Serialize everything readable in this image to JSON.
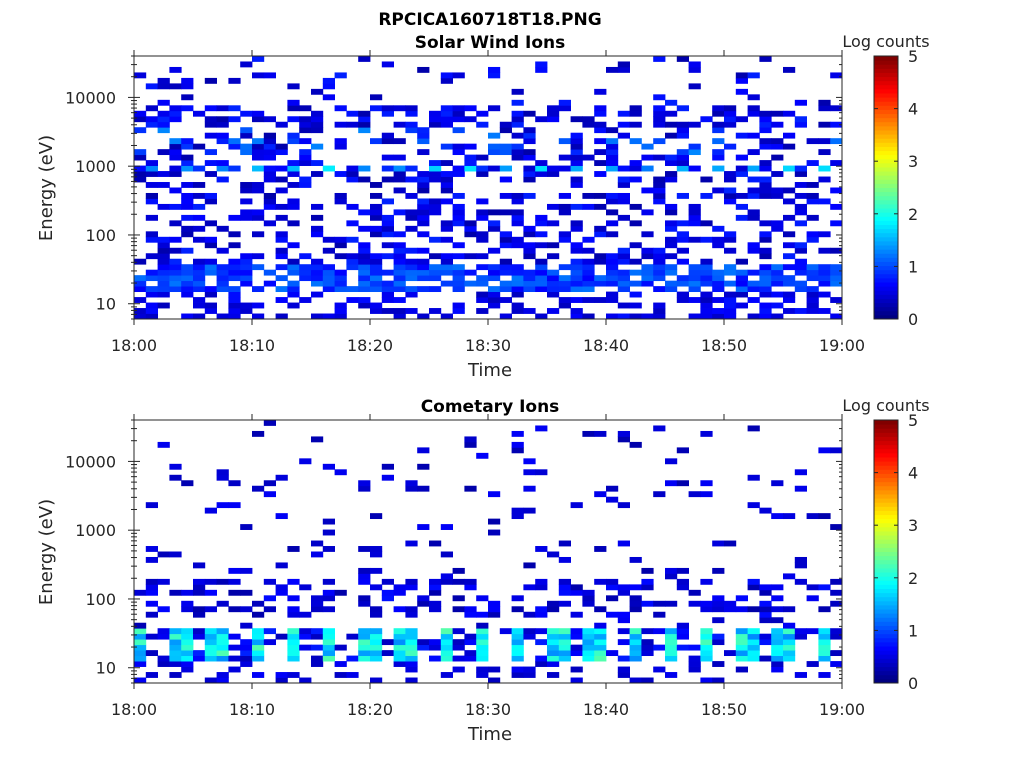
{
  "page_title": "RPCICA160718T18.PNG",
  "chart_data": [
    {
      "type": "heatmap",
      "title": "Solar Wind Ions",
      "xlabel": "Time",
      "ylabel": "Energy (eV)",
      "x_ticks": [
        "18:00",
        "18:10",
        "18:20",
        "18:30",
        "18:40",
        "18:50",
        "19:00"
      ],
      "x_range": [
        "18:00",
        "19:00"
      ],
      "y_scale": "log",
      "y_ticks": [
        10,
        100,
        1000,
        10000
      ],
      "y_tick_labels": [
        "10",
        "100",
        "1000",
        "10000"
      ],
      "ylim": [
        6,
        40000
      ],
      "colorbar": {
        "label": "Log counts",
        "range": [
          0,
          5
        ],
        "ticks": [
          "0",
          "1",
          "2",
          "3",
          "4",
          "5"
        ],
        "colormap": "jet"
      },
      "features": {
        "rows": 48,
        "cols": 60,
        "seed": 11,
        "background_density": 0.4,
        "background_density_high": 0.12,
        "low_energy_band": [
          15,
          35
        ],
        "low_energy_log_counts": [
          0.6,
          1.2
        ],
        "band_1keV": 1000,
        "band_1keV_log_counts": [
          1.2,
          1.8
        ],
        "bottom_sparse_band": [
          6,
          15
        ]
      }
    },
    {
      "type": "heatmap",
      "title": "Cometary Ions",
      "xlabel": "Time",
      "ylabel": "Energy (eV)",
      "x_ticks": [
        "18:00",
        "18:10",
        "18:20",
        "18:30",
        "18:40",
        "18:50",
        "19:00"
      ],
      "x_range": [
        "18:00",
        "19:00"
      ],
      "y_scale": "log",
      "y_ticks": [
        10,
        100,
        1000,
        10000
      ],
      "y_tick_labels": [
        "10",
        "100",
        "1000",
        "10000"
      ],
      "ylim": [
        6,
        40000
      ],
      "colorbar": {
        "label": "Log counts",
        "range": [
          0,
          5
        ],
        "ticks": [
          "0",
          "1",
          "2",
          "3",
          "4",
          "5"
        ],
        "colormap": "jet"
      },
      "features": {
        "rows": 48,
        "cols": 60,
        "seed": 29,
        "background_density": 0.1,
        "background_density_high": 0.05,
        "mid_band": [
          50,
          200
        ],
        "mid_density": 0.35,
        "low_energy_band": [
          12,
          35
        ],
        "low_energy_log_counts": [
          1.3,
          2.3
        ],
        "burst_period_min": 3.2,
        "bottom_sparse_band": [
          6,
          12
        ]
      }
    }
  ]
}
